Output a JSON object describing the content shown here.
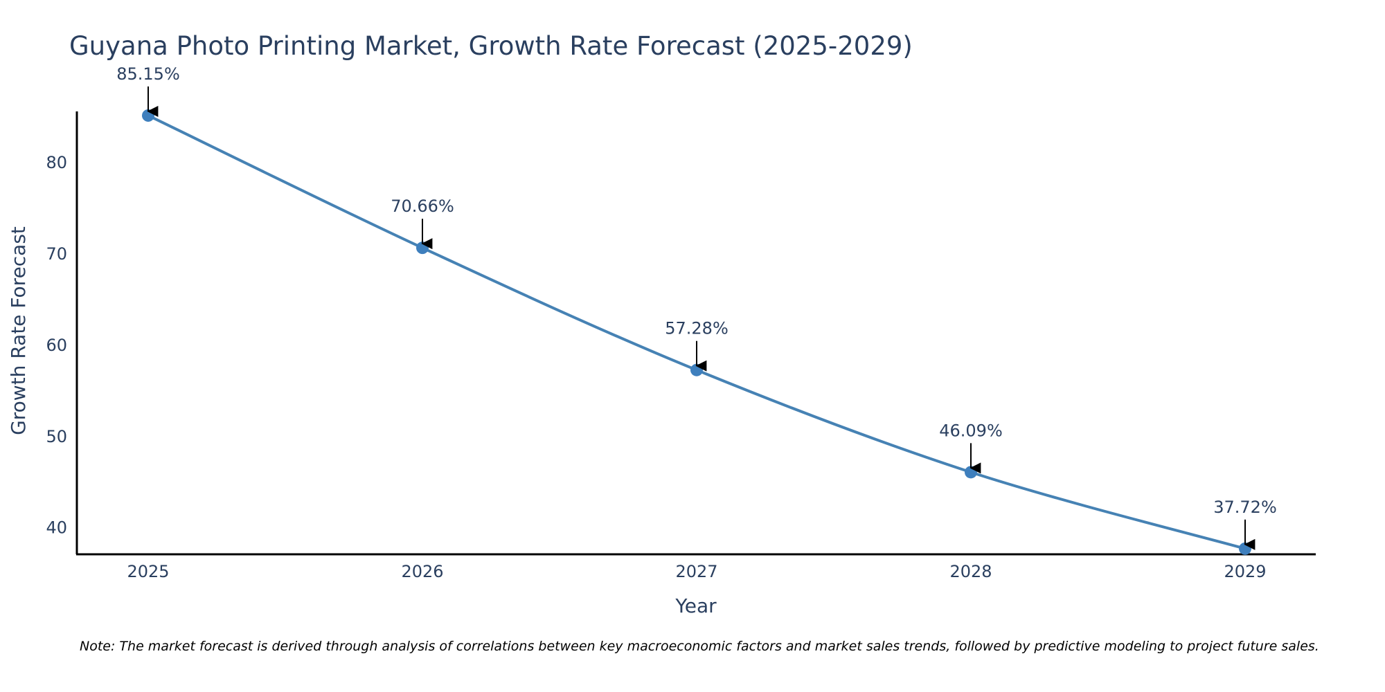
{
  "chart_data": {
    "type": "line",
    "title": "Guyana Photo Printing Market, Growth Rate Forecast (2025-2029)",
    "xlabel": "Year",
    "ylabel": "Growth Rate Forecast",
    "categories": [
      "2025",
      "2026",
      "2027",
      "2028",
      "2029"
    ],
    "series": [
      {
        "name": "Growth Rate Forecast",
        "values": [
          85.15,
          70.66,
          57.28,
          46.09,
          37.72
        ],
        "labels": [
          "85.15%",
          "70.66%",
          "57.28%",
          "46.09%",
          "37.72%"
        ]
      }
    ],
    "yticks": [
      40,
      50,
      60,
      70,
      80
    ],
    "ytick_labels": [
      "40",
      "50",
      "60",
      "70",
      "80"
    ],
    "ylim": [
      37.1,
      85.6
    ],
    "grid": false,
    "line_color": "#4682b4",
    "marker_color": "#3e7fbd",
    "annotation_color": "#000000"
  },
  "note": "Note: The market forecast is derived through analysis of correlations between key macroeconomic factors and market sales trends, followed by predictive modeling to project future sales."
}
